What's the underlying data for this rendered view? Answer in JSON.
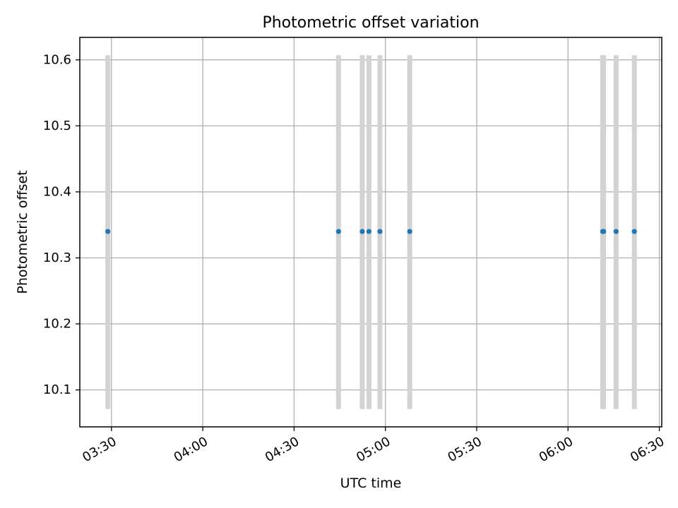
{
  "chart_data": {
    "type": "scatter",
    "title": "Photometric offset variation",
    "xlabel": "UTC time",
    "ylabel": "Photometric offset",
    "x_axis_type": "time",
    "xlim": [
      "03:19:36",
      "06:30:48"
    ],
    "ylim": [
      10.044,
      10.634
    ],
    "grid": true,
    "x_ticks": [
      "03:30",
      "04:00",
      "04:30",
      "05:00",
      "05:30",
      "06:00",
      "06:30"
    ],
    "y_ticks": [
      "10.1",
      "10.2",
      "10.3",
      "10.4",
      "10.5",
      "10.6"
    ],
    "series": [
      {
        "color": "#1f77b4",
        "errorbar_color": "#d3d3d3",
        "points": [
          {
            "t": "03:28:48",
            "y": 10.34,
            "err_low": 10.071,
            "err_high": 10.607
          },
          {
            "t": "04:44:36",
            "y": 10.34,
            "err_low": 10.071,
            "err_high": 10.607
          },
          {
            "t": "04:52:24",
            "y": 10.34,
            "err_low": 10.071,
            "err_high": 10.607
          },
          {
            "t": "04:54:36",
            "y": 10.34,
            "err_low": 10.071,
            "err_high": 10.607
          },
          {
            "t": "04:58:12",
            "y": 10.34,
            "err_low": 10.071,
            "err_high": 10.607
          },
          {
            "t": "05:08:00",
            "y": 10.34,
            "err_low": 10.071,
            "err_high": 10.607
          },
          {
            "t": "06:11:24",
            "y": 10.34,
            "err_low": 10.071,
            "err_high": 10.607
          },
          {
            "t": "06:11:42",
            "y": 10.34,
            "err_low": 10.071,
            "err_high": 10.607
          },
          {
            "t": "06:15:48",
            "y": 10.34,
            "err_low": 10.071,
            "err_high": 10.607
          },
          {
            "t": "06:21:48",
            "y": 10.34,
            "err_low": 10.071,
            "err_high": 10.607
          }
        ]
      }
    ]
  }
}
